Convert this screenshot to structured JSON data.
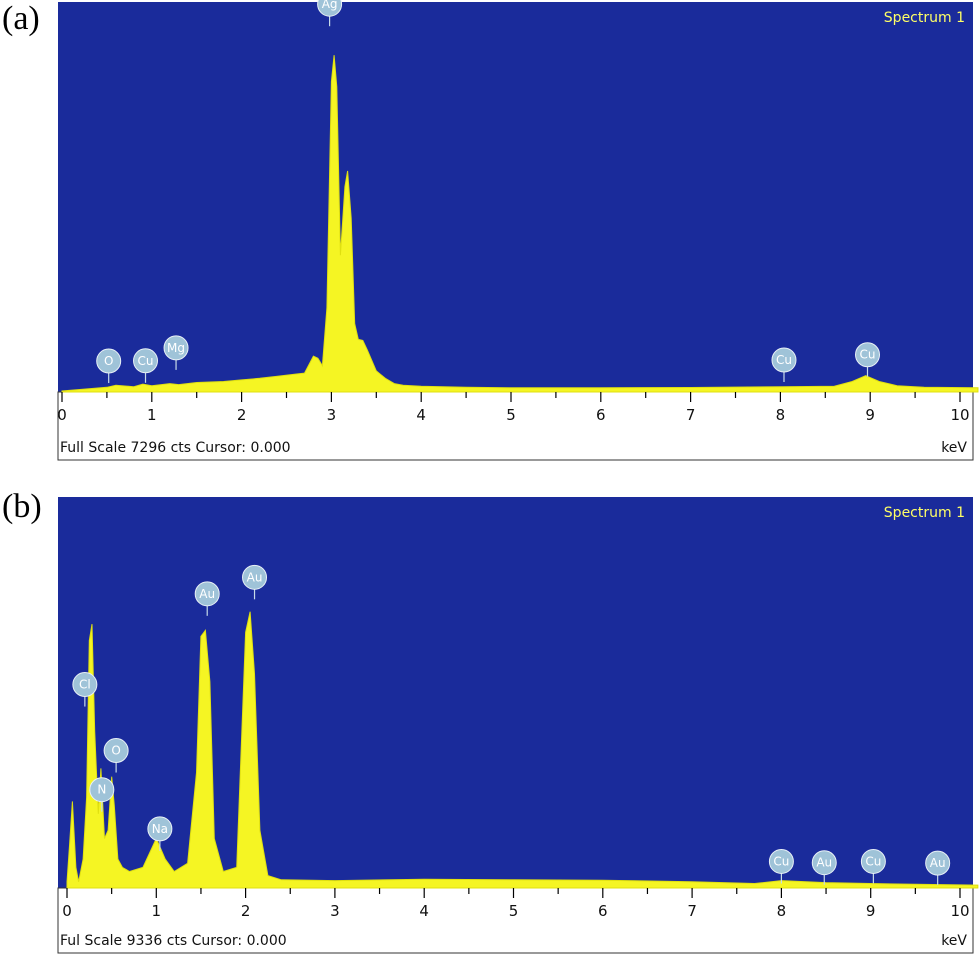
{
  "chart_data": [
    {
      "type": "area",
      "panel": "(a)",
      "legend": "Spectrum 1",
      "x_unit": "keV",
      "xlim": [
        0,
        10.2
      ],
      "x_ticks": [
        "0",
        "1",
        "2",
        "3",
        "4",
        "5",
        "6",
        "7",
        "8",
        "9",
        "10"
      ],
      "footer": "Full Scale 7296 cts Cursor: 0.000",
      "full_scale": 7296,
      "ylim": [
        0,
        7296
      ],
      "series": [
        {
          "x": [
            0.0,
            0.3,
            0.5,
            0.6,
            0.8,
            0.9,
            1.0,
            1.2,
            1.3,
            1.5,
            1.8,
            2.0,
            2.2,
            2.4,
            2.6,
            2.7,
            2.8,
            2.85,
            2.9,
            2.95,
            3.0,
            3.03,
            3.06,
            3.1,
            3.15,
            3.18,
            3.22,
            3.26,
            3.3,
            3.35,
            3.4,
            3.5,
            3.6,
            3.7,
            3.8,
            4.0,
            4.5,
            5.0,
            6.0,
            7.0,
            8.0,
            8.6,
            8.8,
            8.95,
            9.1,
            9.3,
            9.6,
            10.2
          ],
          "y": [
            20,
            60,
            90,
            130,
            100,
            150,
            120,
            160,
            140,
            180,
            200,
            230,
            260,
            300,
            340,
            360,
            680,
            640,
            500,
            1600,
            5900,
            6400,
            5800,
            2600,
            3900,
            4200,
            3300,
            1300,
            1000,
            980,
            800,
            400,
            260,
            160,
            130,
            110,
            90,
            80,
            80,
            85,
            100,
            110,
            200,
            310,
            200,
            120,
            90,
            80
          ]
        }
      ],
      "peak_labels": [
        {
          "label": "O",
          "x": 0.52,
          "y": 170
        },
        {
          "label": "Cu",
          "x": 0.93,
          "y": 175
        },
        {
          "label": "Mg",
          "x": 1.27,
          "y": 420
        },
        {
          "label": "Ag",
          "x": 2.98,
          "y": 6950
        },
        {
          "label": "Cu",
          "x": 8.04,
          "y": 190
        },
        {
          "label": "Cu",
          "x": 8.97,
          "y": 290
        }
      ]
    },
    {
      "type": "area",
      "panel": "(b)",
      "legend": "Spectrum 1",
      "x_unit": "keV",
      "xlim": [
        0,
        10.2
      ],
      "x_ticks": [
        "0",
        "1",
        "2",
        "3",
        "4",
        "5",
        "6",
        "7",
        "8",
        "9",
        "10"
      ],
      "footer": "Ful Scale 9336 cts Cursor: 0.000",
      "full_scale": 9336,
      "ylim": [
        0,
        9336
      ],
      "series": [
        {
          "x": [
            0.0,
            0.03,
            0.06,
            0.1,
            0.13,
            0.18,
            0.22,
            0.25,
            0.28,
            0.31,
            0.35,
            0.38,
            0.42,
            0.46,
            0.5,
            0.53,
            0.57,
            0.62,
            0.7,
            0.85,
            1.0,
            1.1,
            1.2,
            1.35,
            1.45,
            1.5,
            1.55,
            1.6,
            1.65,
            1.75,
            1.9,
            2.0,
            2.05,
            2.1,
            2.16,
            2.25,
            2.4,
            3.0,
            4.0,
            5.0,
            6.0,
            7.0,
            7.7,
            8.0,
            8.5,
            9.0,
            9.5,
            10.2
          ],
          "y": [
            150,
            1100,
            2100,
            500,
            150,
            700,
            2200,
            6000,
            6400,
            3800,
            1800,
            2900,
            1200,
            1400,
            2700,
            2000,
            700,
            500,
            400,
            500,
            1200,
            700,
            400,
            600,
            2800,
            6100,
            6250,
            5000,
            1200,
            400,
            500,
            6200,
            6700,
            5200,
            1400,
            300,
            200,
            180,
            210,
            200,
            190,
            150,
            110,
            180,
            130,
            110,
            90,
            70
          ]
        }
      ],
      "peak_labels": [
        {
          "label": "Cl",
          "x": 0.2,
          "y": 4400
        },
        {
          "label": "N",
          "x": 0.39,
          "y": 1850
        },
        {
          "label": "O",
          "x": 0.55,
          "y": 2800
        },
        {
          "label": "Na",
          "x": 1.04,
          "y": 900
        },
        {
          "label": "Au",
          "x": 1.57,
          "y": 6600
        },
        {
          "label": "Au",
          "x": 2.1,
          "y": 7000
        },
        {
          "label": "Cu",
          "x": 8.0,
          "y": 110
        },
        {
          "label": "Au",
          "x": 8.48,
          "y": 80
        },
        {
          "label": "Cu",
          "x": 9.03,
          "y": 110
        },
        {
          "label": "Au",
          "x": 9.75,
          "y": 70
        }
      ]
    }
  ]
}
